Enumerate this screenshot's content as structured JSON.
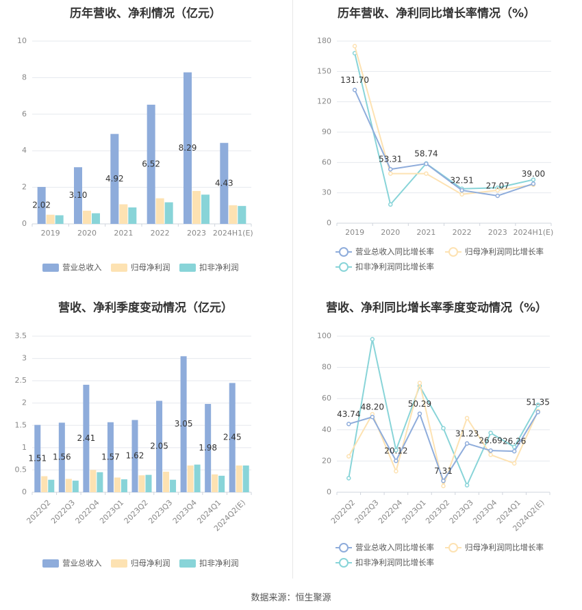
{
  "source": "数据来源：恒生聚源",
  "colors": {
    "revenue": "#8eacdb",
    "net_profit": "#fde2b2",
    "deducted_profit": "#88d4d8",
    "grid": "#e5e8ee",
    "axis": "#cfd4dc"
  },
  "chart_data": [
    {
      "type": "bar",
      "title": "历年营收、净利情况（亿元）",
      "categories": [
        "2019",
        "2020",
        "2021",
        "2022",
        "2023",
        "2024H1(E)"
      ],
      "ylim": [
        0,
        10
      ],
      "yticks": [
        0,
        2,
        4,
        6,
        8,
        10
      ],
      "grid": true,
      "legend_position": "bottom",
      "label_series": 0,
      "series": [
        {
          "name": "营业总收入",
          "values": [
            2.02,
            3.1,
            4.92,
            6.52,
            8.29,
            4.43
          ],
          "labels": [
            "2.02",
            "3.10",
            "4.92",
            "6.52",
            "8.29",
            "4.43"
          ]
        },
        {
          "name": "归母净利润",
          "values": [
            0.5,
            0.72,
            1.07,
            1.4,
            1.8,
            1.02
          ]
        },
        {
          "name": "扣非净利润",
          "values": [
            0.47,
            0.58,
            0.9,
            1.18,
            1.6,
            0.98
          ]
        }
      ]
    },
    {
      "type": "line",
      "title": "历年营收、净利同比增长率情况（%）",
      "categories": [
        "2019",
        "2020",
        "2021",
        "2022",
        "2023",
        "2024H1(E)"
      ],
      "ylim": [
        0,
        180
      ],
      "yticks": [
        0,
        30,
        60,
        90,
        120,
        150,
        180
      ],
      "grid": true,
      "legend_position": "bottom",
      "label_series": 0,
      "series": [
        {
          "name": "营业总收入同比增长率",
          "values": [
            131.7,
            53.31,
            58.74,
            32.51,
            27.07,
            39.0
          ],
          "labels": [
            "131.70",
            "53.31",
            "58.74",
            "32.51",
            "27.07",
            "39.00"
          ]
        },
        {
          "name": "归母净利润同比增长率",
          "values": [
            175.0,
            49.0,
            49.0,
            28.5,
            32.5,
            38.0
          ]
        },
        {
          "name": "扣非净利润同比增长率",
          "values": [
            168.0,
            18.5,
            59.0,
            34.0,
            35.0,
            43.0
          ]
        }
      ]
    },
    {
      "type": "bar",
      "title": "营收、净利季度变动情况（亿元）",
      "categories": [
        "2022Q2",
        "2022Q3",
        "2022Q4",
        "2023Q1",
        "2023Q2",
        "2023Q3",
        "2023Q4",
        "2024Q1",
        "2024Q2(E)"
      ],
      "ylim": [
        0,
        3.5
      ],
      "yticks": [
        0,
        0.5,
        1,
        1.5,
        2,
        2.5,
        3,
        3.5
      ],
      "grid": true,
      "legend_position": "bottom",
      "label_series": 0,
      "series": [
        {
          "name": "营业总收入",
          "values": [
            1.51,
            1.56,
            2.41,
            1.57,
            1.62,
            2.05,
            3.05,
            1.98,
            2.45
          ],
          "labels": [
            "1.51",
            "1.56",
            "2.41",
            "1.57",
            "1.62",
            "2.05",
            "3.05",
            "1.98",
            "2.45"
          ]
        },
        {
          "name": "归母净利润",
          "values": [
            0.36,
            0.3,
            0.5,
            0.33,
            0.38,
            0.46,
            0.6,
            0.4,
            0.6
          ]
        },
        {
          "name": "扣非净利润",
          "values": [
            0.28,
            0.26,
            0.45,
            0.29,
            0.39,
            0.28,
            0.62,
            0.37,
            0.6
          ]
        }
      ]
    },
    {
      "type": "line",
      "title": "营收、净利同比增长率季度变动情况（%）",
      "categories": [
        "2022Q2",
        "2022Q3",
        "2022Q4",
        "2023Q1",
        "2023Q2",
        "2023Q3",
        "2023Q4",
        "2024Q1",
        "2024Q2(E)"
      ],
      "ylim": [
        0,
        100
      ],
      "yticks": [
        0,
        20,
        40,
        60,
        80,
        100
      ],
      "grid": true,
      "legend_position": "bottom",
      "label_series": 0,
      "series": [
        {
          "name": "营业总收入同比增长率",
          "values": [
            43.74,
            48.2,
            20.12,
            50.29,
            7.31,
            31.23,
            26.69,
            26.26,
            51.35
          ],
          "labels": [
            "43.74",
            "48.20",
            "20.12",
            "50.29",
            "7.31",
            "31.23",
            "26.69",
            "26.26",
            "51.35"
          ]
        },
        {
          "name": "归母净利润同比增长率",
          "values": [
            23.0,
            50.0,
            13.5,
            70.0,
            4.0,
            47.5,
            24.0,
            18.5,
            52.0
          ]
        },
        {
          "name": "扣非净利润同比增长率",
          "values": [
            9.0,
            98.0,
            27.0,
            68.0,
            41.0,
            4.5,
            38.0,
            29.0,
            56.0
          ]
        }
      ]
    }
  ]
}
